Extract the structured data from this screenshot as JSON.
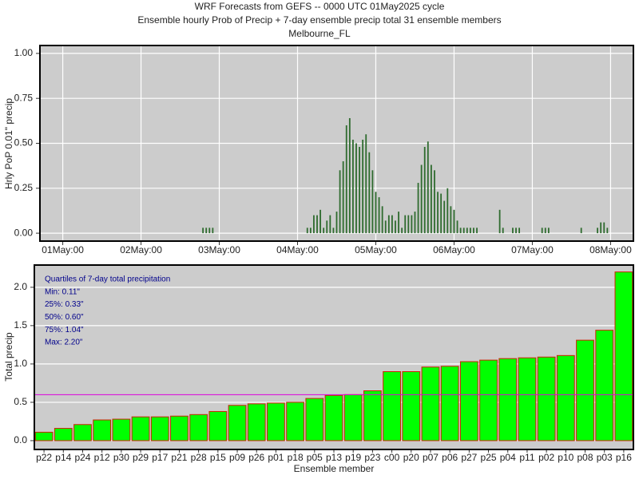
{
  "chart_data": [
    {
      "type": "bar",
      "title": [
        "WRF Forecasts from GEFS --  0000 UTC 01May2025  cycle",
        "Ensemble hourly Prob of Precip + 7-day ensemble precip total  31 ensemble members",
        "Melbourne_FL"
      ],
      "ylabel": "Hrly PoP 0.01\" precip",
      "color": "#2e6b2e",
      "x": [
        43,
        44,
        45,
        46,
        75,
        76,
        77,
        78,
        79,
        80,
        81,
        82,
        83,
        84,
        85,
        86,
        87,
        88,
        89,
        90,
        91,
        92,
        93,
        94,
        95,
        96,
        97,
        98,
        99,
        100,
        101,
        102,
        103,
        104,
        105,
        106,
        107,
        108,
        109,
        110,
        111,
        112,
        113,
        114,
        115,
        116,
        117,
        118,
        119,
        120,
        121,
        122,
        123,
        124,
        125,
        126,
        127,
        134,
        135,
        138,
        139,
        140,
        147,
        148,
        149,
        159,
        164,
        165,
        166,
        167
      ],
      "values": [
        0.03,
        0.03,
        0.03,
        0.03,
        0.03,
        0.03,
        0.1,
        0.1,
        0.13,
        0.03,
        0.07,
        0.1,
        0.03,
        0.12,
        0.35,
        0.4,
        0.6,
        0.64,
        0.52,
        0.5,
        0.48,
        0.52,
        0.55,
        0.45,
        0.35,
        0.23,
        0.2,
        0.15,
        0.07,
        0.1,
        0.1,
        0.07,
        0.12,
        0.03,
        0.1,
        0.1,
        0.1,
        0.12,
        0.28,
        0.38,
        0.48,
        0.51,
        0.38,
        0.35,
        0.23,
        0.22,
        0.18,
        0.25,
        0.15,
        0.13,
        0.07,
        0.03,
        0.03,
        0.03,
        0.03,
        0.03,
        0.03,
        0.13,
        0.03,
        0.03,
        0.03,
        0.03,
        0.03,
        0.03,
        0.03,
        0.03,
        0.03,
        0.06,
        0.06,
        0.03
      ],
      "xlim": [
        -7,
        175
      ],
      "xticks": [
        {
          "value": 0,
          "label": "01May:00"
        },
        {
          "value": 24,
          "label": "02May:00"
        },
        {
          "value": 48,
          "label": "03May:00"
        },
        {
          "value": 72,
          "label": "04May:00"
        },
        {
          "value": 96,
          "label": "05May:00"
        },
        {
          "value": 120,
          "label": "06May:00"
        },
        {
          "value": 144,
          "label": "07May:00"
        },
        {
          "value": 168,
          "label": "08May:00"
        }
      ],
      "ylim": [
        -0.044,
        1.044
      ],
      "yticks": [
        {
          "value": 0,
          "label": "0.00"
        },
        0.25,
        {
          "value": 0.5,
          "label": "0.50"
        },
        0.75,
        {
          "value": 1,
          "label": "1.00"
        }
      ],
      "grid": true
    },
    {
      "type": "bar",
      "ylabel": "Total precip",
      "xlabel": "Ensemble member",
      "color": "#00ff00",
      "edge_color": "#cc2200",
      "categories": [
        "p22",
        "p14",
        "p24",
        "p12",
        "p30",
        "p29",
        "p17",
        "p21",
        "p28",
        "p15",
        "p09",
        "p26",
        "p01",
        "p18",
        "p05",
        "p13",
        "p19",
        "p23",
        "c00",
        "p20",
        "p07",
        "p06",
        "p27",
        "p25",
        "p04",
        "p11",
        "p02",
        "p10",
        "p08",
        "p03",
        "p16"
      ],
      "values": [
        0.11,
        0.16,
        0.21,
        0.27,
        0.28,
        0.31,
        0.31,
        0.32,
        0.34,
        0.38,
        0.46,
        0.48,
        0.49,
        0.5,
        0.55,
        0.59,
        0.6,
        0.65,
        0.9,
        0.9,
        0.96,
        0.97,
        1.03,
        1.05,
        1.07,
        1.08,
        1.09,
        1.11,
        1.31,
        1.44,
        2.2
      ],
      "median_line": 0.6,
      "median_color": "#dd00dd",
      "annotations": [
        "Quartiles of 7-day total precipitation",
        "Min:   0.11\"",
        "25%:  0.33\"",
        "50%:  0.60\"",
        "75%:  1.04\"",
        "Max:   2.20\""
      ],
      "ylim": [
        -0.115,
        2.29
      ],
      "yticks": [
        {
          "value": 0,
          "label": "0.0"
        },
        0.5,
        {
          "value": 1,
          "label": "1.0"
        },
        1.5,
        {
          "value": 2,
          "label": "2.0"
        }
      ],
      "grid": true
    }
  ]
}
